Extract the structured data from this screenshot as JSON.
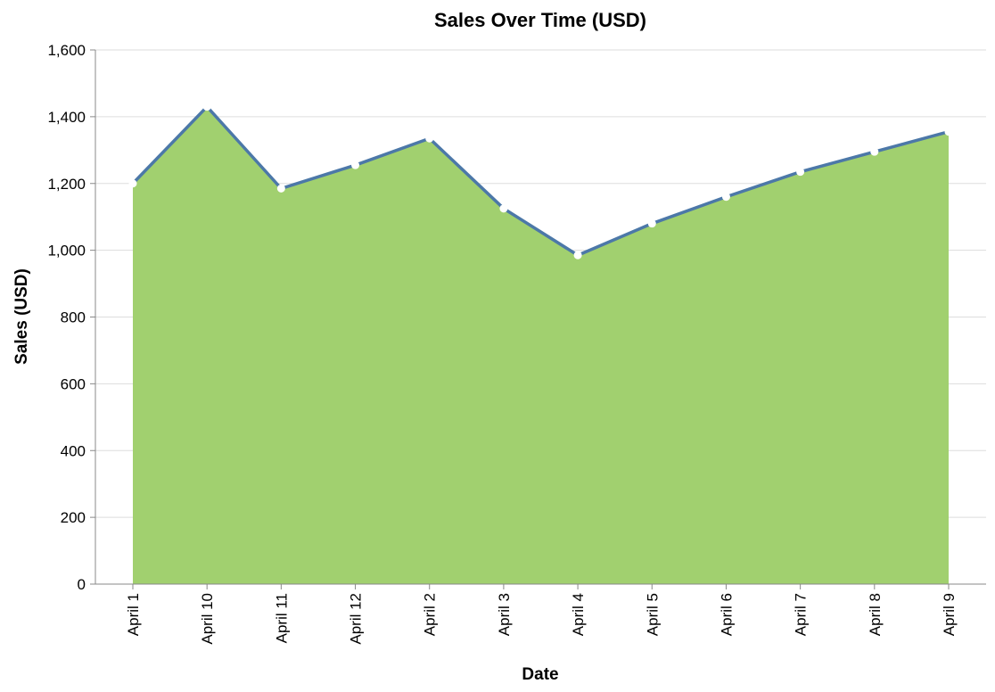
{
  "chart_data": {
    "type": "area",
    "title": "Sales Over Time (USD)",
    "xlabel": "Date",
    "ylabel": "Sales (USD)",
    "categories": [
      "April 1",
      "April 10",
      "April 11",
      "April 12",
      "April 2",
      "April 3",
      "April 4",
      "April 5",
      "April 6",
      "April 7",
      "April 8",
      "April 9"
    ],
    "values": [
      1200,
      1430,
      1185,
      1255,
      1335,
      1125,
      985,
      1080,
      1160,
      1235,
      1295,
      1355
    ],
    "ylim": [
      0,
      1600
    ],
    "yticks": [
      0,
      200,
      400,
      600,
      800,
      1000,
      1200,
      1400,
      1600
    ],
    "ytick_labels": [
      "0",
      "200",
      "400",
      "600",
      "800",
      "1,000",
      "1,200",
      "1,400",
      "1,600"
    ],
    "grid": true,
    "colors": {
      "area": "#a1d06f",
      "line": "#4c78a8",
      "point": "#ffffff"
    }
  }
}
